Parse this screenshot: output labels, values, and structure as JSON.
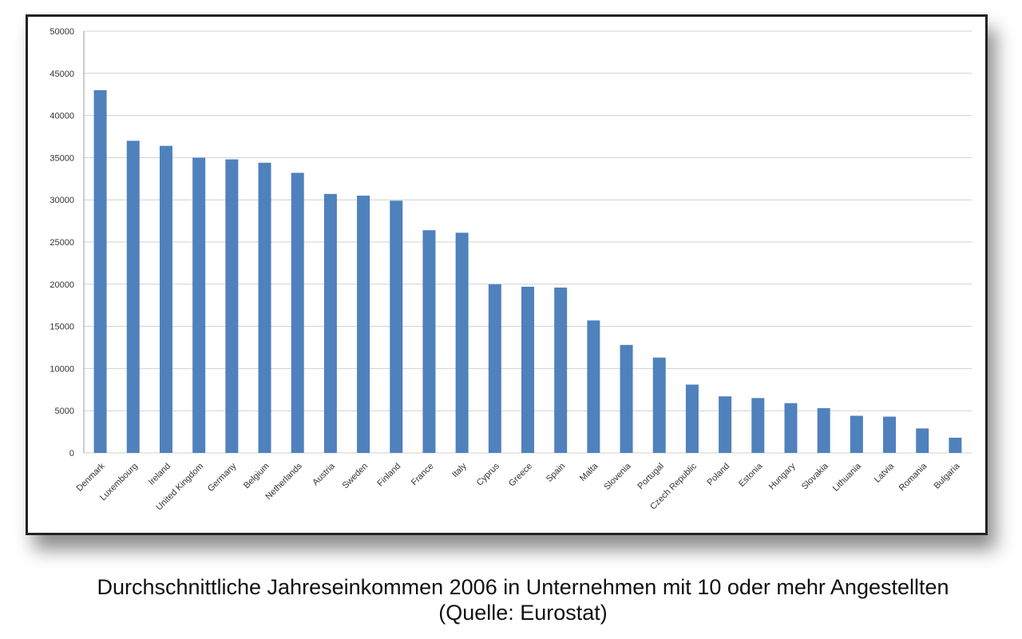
{
  "chart_data": {
    "type": "bar",
    "title": "",
    "xlabel": "",
    "ylabel": "",
    "ylim": [
      0,
      50000
    ],
    "yticks": [
      0,
      5000,
      10000,
      15000,
      20000,
      25000,
      30000,
      35000,
      40000,
      45000,
      50000
    ],
    "grid": true,
    "categories": [
      "Denmark",
      "Luxembourg",
      "Ireland",
      "United Kingdom",
      "Germany",
      "Belgium",
      "Netherlands",
      "Austria",
      "Sweden",
      "Finland",
      "France",
      "Italy",
      "Cyprus",
      "Greece",
      "Spain",
      "Malta",
      "Slovenia",
      "Portugal",
      "Czech Republic",
      "Poland",
      "Estonia",
      "Hungary",
      "Slovakia",
      "Lithuania",
      "Latvia",
      "Romania",
      "Bulgaria"
    ],
    "values": [
      43000,
      37000,
      36400,
      35000,
      34800,
      34400,
      33200,
      30700,
      30500,
      29900,
      26400,
      26100,
      20000,
      19700,
      19600,
      15700,
      12800,
      11300,
      8100,
      6700,
      6500,
      5900,
      5300,
      4400,
      4300,
      2900,
      1800
    ],
    "bar_color": "#4f81bd",
    "grid_color": "#d0d0d0"
  },
  "caption": {
    "line1": "Durchschnittliche Jahreseinkommen 2006 in Unternehmen mit 10 oder mehr Angestellten",
    "line2": "(Quelle: Eurostat)"
  }
}
